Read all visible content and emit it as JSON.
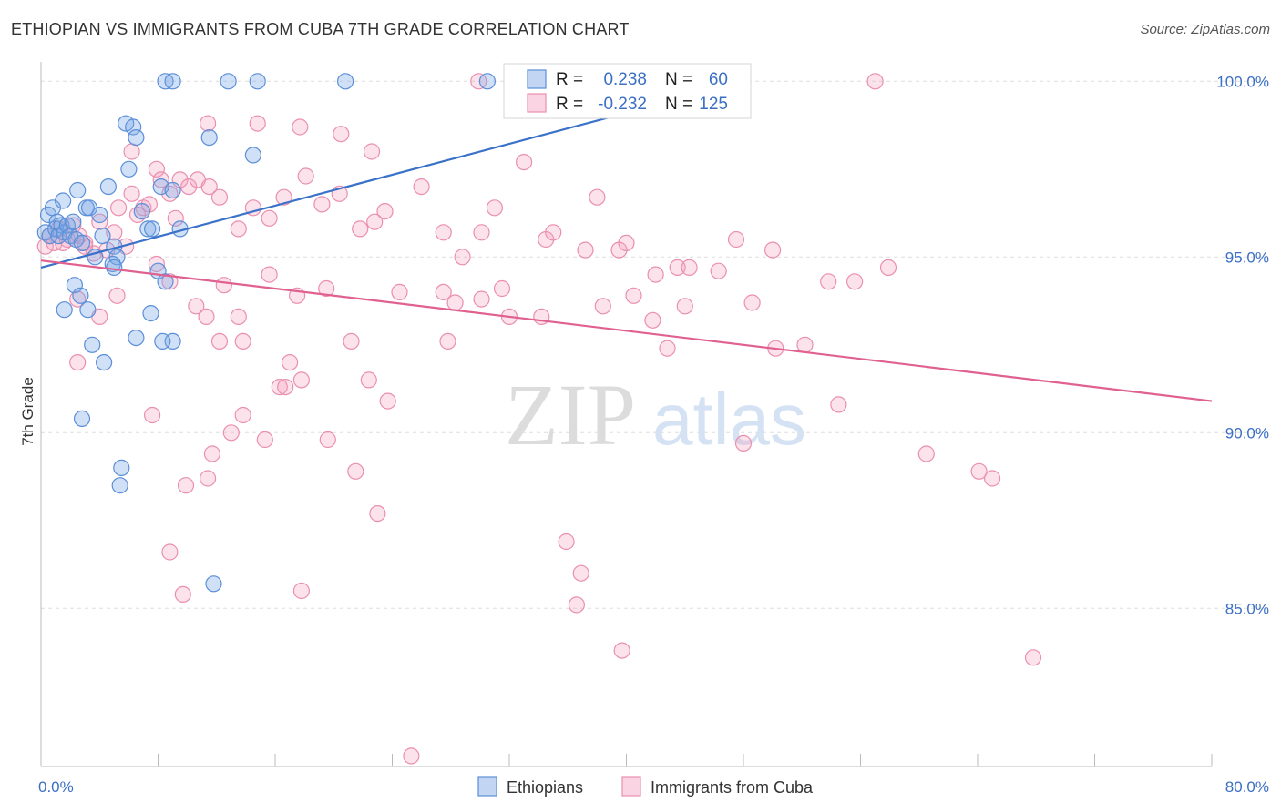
{
  "header": {
    "title": "ETHIOPIAN VS IMMIGRANTS FROM CUBA 7TH GRADE CORRELATION CHART",
    "source": "Source: ZipAtlas.com"
  },
  "watermark": {
    "zip": "ZIP",
    "atlas": "atlas"
  },
  "colors": {
    "blue": "#3b72c9",
    "blue_fill": "rgba(120,165,230,0.35)",
    "blue_stroke": "#5b8fd8",
    "pink": "#e0608f",
    "pink_fill": "rgba(245,160,190,0.30)",
    "pink_stroke": "#ea8fb0",
    "label": "#3b6fc4",
    "grid": "#dddddd"
  },
  "legend_top": {
    "rows": [
      {
        "r_label": "R =",
        "r_value": "0.238",
        "n_label": "N =",
        "n_value": "60"
      },
      {
        "r_label": "R =",
        "r_value": "-0.232",
        "n_label": "N =",
        "n_value": "125"
      }
    ]
  },
  "chart_data": {
    "type": "scatter",
    "title": "ETHIOPIAN VS IMMIGRANTS FROM CUBA 7TH GRADE CORRELATION CHART",
    "xlabel": "",
    "ylabel": "7th Grade",
    "xlim": [
      0,
      80
    ],
    "ylim": [
      80.5,
      100.5
    ],
    "x_tick_labels": [
      "0.0%",
      "80.0%"
    ],
    "y_ticks": [
      85,
      90,
      95,
      100
    ],
    "y_tick_labels": [
      "85.0%",
      "90.0%",
      "95.0%",
      "100.0%"
    ],
    "legend_bottom": [
      "Ethiopians",
      "Immigrants from Cuba"
    ],
    "series": [
      {
        "name": "Ethiopians",
        "r": 0.238,
        "n": 60,
        "trend": {
          "x": [
            0.0,
            40.0
          ],
          "y": [
            94.7,
            99.1
          ]
        },
        "points": [
          [
            0.3,
            95.7
          ],
          [
            0.5,
            96.2
          ],
          [
            0.6,
            95.6
          ],
          [
            0.8,
            96.4
          ],
          [
            1.0,
            95.8
          ],
          [
            1.1,
            96.0
          ],
          [
            1.2,
            95.6
          ],
          [
            1.4,
            95.9
          ],
          [
            1.5,
            96.6
          ],
          [
            1.6,
            95.7
          ],
          [
            1.8,
            95.9
          ],
          [
            2.0,
            95.6
          ],
          [
            2.2,
            96.0
          ],
          [
            2.4,
            95.5
          ],
          [
            2.5,
            96.9
          ],
          [
            2.8,
            95.4
          ],
          [
            3.1,
            96.4
          ],
          [
            3.3,
            96.4
          ],
          [
            3.7,
            95.0
          ],
          [
            4.0,
            96.2
          ],
          [
            4.2,
            95.6
          ],
          [
            4.6,
            97.0
          ],
          [
            5.0,
            95.3
          ],
          [
            5.2,
            95.0
          ],
          [
            5.8,
            98.8
          ],
          [
            6.0,
            97.5
          ],
          [
            6.3,
            98.7
          ],
          [
            6.5,
            98.4
          ],
          [
            6.9,
            96.3
          ],
          [
            7.3,
            95.8
          ],
          [
            7.6,
            95.8
          ],
          [
            8.2,
            97.0
          ],
          [
            9.0,
            96.9
          ],
          [
            9.5,
            95.8
          ],
          [
            11.5,
            98.4
          ],
          [
            14.5,
            97.9
          ],
          [
            8.5,
            100.0
          ],
          [
            9.0,
            100.0
          ],
          [
            12.8,
            100.0
          ],
          [
            14.8,
            100.0
          ],
          [
            20.8,
            100.0
          ],
          [
            30.5,
            100.0
          ],
          [
            1.6,
            93.5
          ],
          [
            2.3,
            94.2
          ],
          [
            2.7,
            93.9
          ],
          [
            3.2,
            93.5
          ],
          [
            3.5,
            92.5
          ],
          [
            4.3,
            92.0
          ],
          [
            4.9,
            94.8
          ],
          [
            5.0,
            94.7
          ],
          [
            7.5,
            93.4
          ],
          [
            8.0,
            94.6
          ],
          [
            8.5,
            94.3
          ],
          [
            6.5,
            92.7
          ],
          [
            9.0,
            92.6
          ],
          [
            8.3,
            92.6
          ],
          [
            2.8,
            90.4
          ],
          [
            5.5,
            89.0
          ],
          [
            5.4,
            88.5
          ],
          [
            11.8,
            85.7
          ]
        ]
      },
      {
        "name": "Immigrants from Cuba",
        "r": -0.232,
        "n": 125,
        "trend": {
          "x": [
            0.0,
            80.0
          ],
          "y": [
            94.9,
            90.9
          ]
        },
        "points": [
          [
            0.3,
            95.3
          ],
          [
            0.6,
            95.6
          ],
          [
            0.9,
            95.4
          ],
          [
            1.2,
            95.8
          ],
          [
            1.5,
            95.4
          ],
          [
            1.8,
            95.5
          ],
          [
            2.2,
            95.9
          ],
          [
            2.6,
            95.6
          ],
          [
            3.0,
            95.3
          ],
          [
            3.6,
            95.1
          ],
          [
            4.0,
            96.0
          ],
          [
            4.5,
            95.2
          ],
          [
            5.0,
            95.7
          ],
          [
            5.3,
            96.4
          ],
          [
            5.8,
            95.3
          ],
          [
            6.2,
            96.8
          ],
          [
            6.6,
            96.2
          ],
          [
            7.0,
            96.4
          ],
          [
            7.4,
            96.5
          ],
          [
            7.9,
            97.5
          ],
          [
            8.2,
            97.2
          ],
          [
            8.8,
            96.8
          ],
          [
            9.5,
            97.2
          ],
          [
            10.1,
            97.0
          ],
          [
            10.7,
            97.2
          ],
          [
            11.5,
            97.0
          ],
          [
            12.2,
            96.7
          ],
          [
            13.5,
            95.8
          ],
          [
            14.5,
            96.4
          ],
          [
            15.6,
            96.1
          ],
          [
            16.6,
            96.7
          ],
          [
            18.1,
            97.3
          ],
          [
            19.2,
            96.5
          ],
          [
            20.4,
            96.8
          ],
          [
            21.8,
            95.8
          ],
          [
            22.8,
            96.0
          ],
          [
            23.5,
            96.3
          ],
          [
            26.0,
            97.0
          ],
          [
            27.5,
            95.7
          ],
          [
            28.8,
            95.0
          ],
          [
            30.1,
            95.7
          ],
          [
            31.0,
            96.4
          ],
          [
            33.0,
            97.7
          ],
          [
            34.5,
            95.5
          ],
          [
            35.0,
            95.7
          ],
          [
            37.2,
            95.2
          ],
          [
            38.0,
            96.7
          ],
          [
            39.5,
            95.2
          ],
          [
            40.0,
            95.4
          ],
          [
            42.0,
            94.5
          ],
          [
            43.5,
            94.7
          ],
          [
            44.3,
            94.7
          ],
          [
            47.5,
            95.5
          ],
          [
            50.0,
            95.2
          ],
          [
            6.2,
            98.0
          ],
          [
            14.8,
            98.8
          ],
          [
            17.7,
            98.7
          ],
          [
            20.5,
            98.5
          ],
          [
            22.6,
            98.0
          ],
          [
            11.4,
            98.8
          ],
          [
            2.5,
            93.8
          ],
          [
            4.0,
            93.3
          ],
          [
            5.2,
            93.9
          ],
          [
            7.9,
            94.8
          ],
          [
            8.8,
            94.3
          ],
          [
            10.6,
            93.6
          ],
          [
            11.3,
            93.3
          ],
          [
            12.5,
            94.2
          ],
          [
            13.5,
            93.3
          ],
          [
            15.6,
            94.5
          ],
          [
            17.5,
            93.9
          ],
          [
            19.5,
            94.1
          ],
          [
            21.2,
            92.6
          ],
          [
            24.5,
            94.0
          ],
          [
            27.5,
            94.0
          ],
          [
            28.3,
            93.7
          ],
          [
            30.1,
            93.8
          ],
          [
            31.5,
            94.1
          ],
          [
            32.0,
            93.3
          ],
          [
            34.2,
            93.3
          ],
          [
            38.4,
            93.6
          ],
          [
            40.5,
            93.9
          ],
          [
            41.8,
            93.2
          ],
          [
            44.0,
            93.6
          ],
          [
            46.3,
            94.6
          ],
          [
            48.6,
            93.7
          ],
          [
            50.2,
            92.4
          ],
          [
            53.8,
            94.3
          ],
          [
            55.6,
            94.3
          ],
          [
            57.9,
            94.7
          ],
          [
            2.5,
            92.0
          ],
          [
            12.2,
            92.6
          ],
          [
            13.8,
            92.6
          ],
          [
            17.0,
            92.0
          ],
          [
            17.8,
            91.5
          ],
          [
            27.8,
            92.6
          ],
          [
            42.8,
            92.4
          ],
          [
            52.2,
            92.5
          ],
          [
            16.3,
            91.3
          ],
          [
            16.7,
            91.3
          ],
          [
            22.4,
            91.5
          ],
          [
            23.7,
            90.9
          ],
          [
            7.6,
            90.5
          ],
          [
            13.8,
            90.5
          ],
          [
            15.3,
            89.8
          ],
          [
            19.6,
            89.8
          ],
          [
            11.7,
            89.4
          ],
          [
            9.9,
            88.5
          ],
          [
            11.4,
            88.7
          ],
          [
            21.5,
            88.9
          ],
          [
            23.0,
            87.7
          ],
          [
            48.0,
            89.7
          ],
          [
            54.5,
            90.8
          ],
          [
            60.5,
            89.4
          ],
          [
            64.1,
            88.9
          ],
          [
            65.0,
            88.7
          ],
          [
            8.8,
            86.6
          ],
          [
            9.7,
            85.4
          ],
          [
            17.8,
            85.5
          ],
          [
            35.9,
            86.9
          ],
          [
            36.9,
            86.0
          ],
          [
            36.6,
            85.1
          ],
          [
            39.7,
            83.8
          ],
          [
            67.8,
            83.6
          ],
          [
            25.3,
            80.8
          ],
          [
            29.9,
            100.0
          ],
          [
            57.0,
            100.0
          ],
          [
            13.0,
            90.0
          ],
          [
            9.2,
            96.1
          ],
          [
            3.0,
            95.4
          ]
        ]
      }
    ]
  }
}
